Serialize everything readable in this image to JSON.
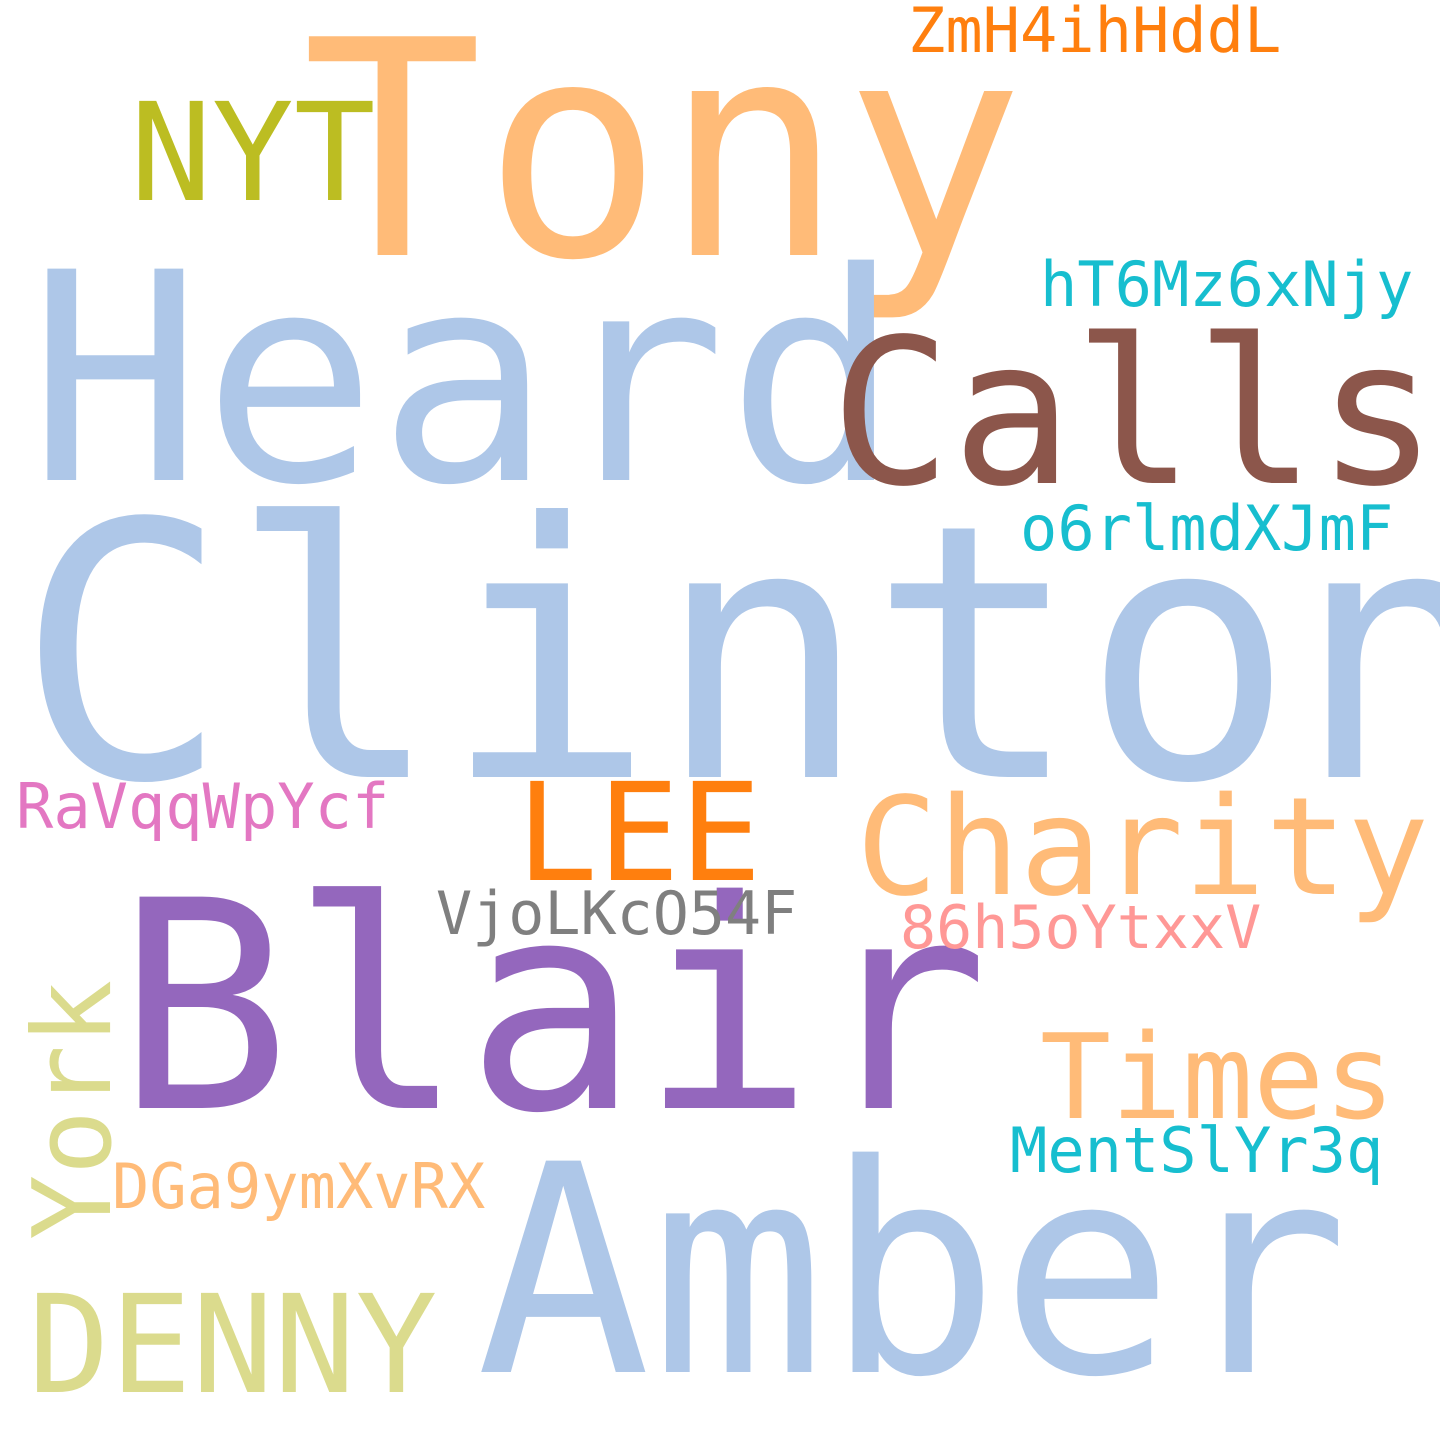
{
  "words": {
    "tony": {
      "text": "Tony",
      "color": "#ffbb78"
    },
    "zmh": {
      "text": "ZmH4ihHddL",
      "color": "#ff7f0e"
    },
    "nyt": {
      "text": "NYT",
      "color": "#bcbd22"
    },
    "heard": {
      "text": "Heard",
      "color": "#aec7e8"
    },
    "ht6": {
      "text": "hT6Mz6xNjy",
      "color": "#17becf"
    },
    "calls": {
      "text": "Calls",
      "color": "#8c564b"
    },
    "o6r": {
      "text": "o6rlmdXJmF",
      "color": "#17becf"
    },
    "clinton": {
      "text": "Clinton",
      "color": "#aec7e8"
    },
    "ravq": {
      "text": "RaVqqWpYcf",
      "color": "#e377c2"
    },
    "lee": {
      "text": "LEE",
      "color": "#ff7f0e"
    },
    "charity": {
      "text": "Charity",
      "color": "#ffbb78"
    },
    "vjo": {
      "text": "VjoLKcO54F",
      "color": "#7f7f7f"
    },
    "h86": {
      "text": "86h5oYtxxV",
      "color": "#ff9896"
    },
    "blair": {
      "text": "Blair",
      "color": "#9467bd"
    },
    "york": {
      "text": "York",
      "color": "#dbdb8d"
    },
    "times": {
      "text": "Times",
      "color": "#ffbb78"
    },
    "ment": {
      "text": "MentSlYr3q",
      "color": "#17becf"
    },
    "dga": {
      "text": "DGa9ymXvRX",
      "color": "#ffbb78"
    },
    "amber": {
      "text": "Amber",
      "color": "#aec7e8"
    },
    "denny": {
      "text": "DENNY",
      "color": "#dbdb8d"
    }
  }
}
